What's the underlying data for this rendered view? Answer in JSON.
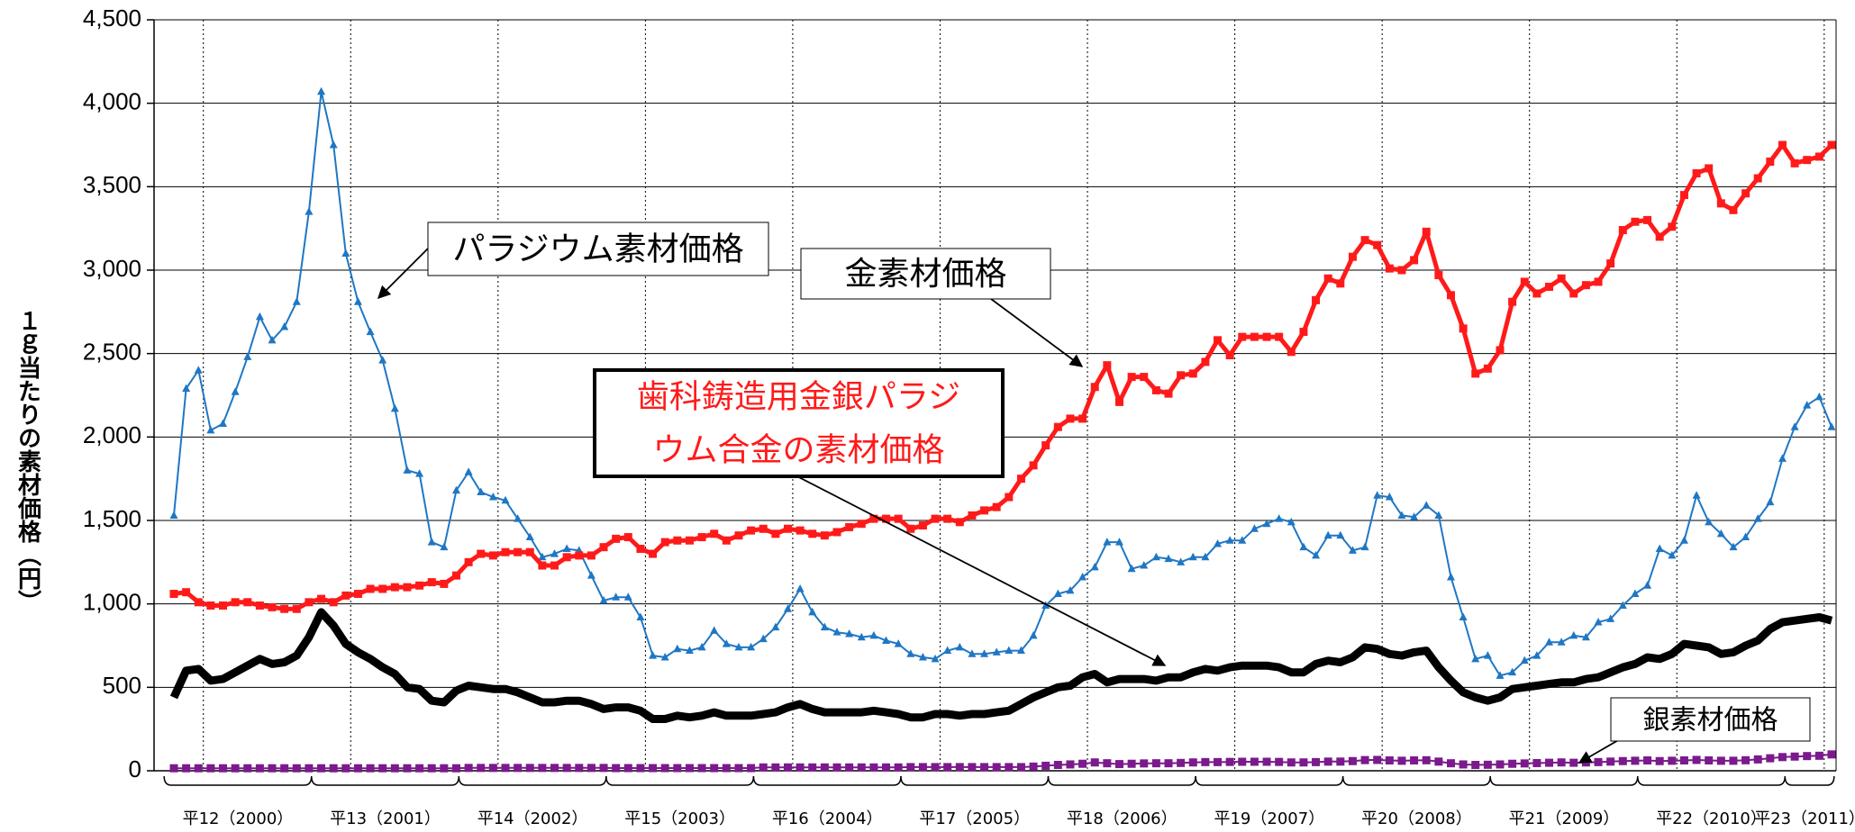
{
  "chart_data": {
    "type": "line",
    "y_label": "１ｇ当たりの素材価格（円）",
    "ylim": [
      0,
      4500
    ],
    "yticks": [
      0,
      500,
      {
        "value": 1000,
        "label": "1,000"
      },
      {
        "value": 1500,
        "label": "1,500"
      },
      {
        "value": 2000,
        "label": "2,000"
      },
      {
        "value": 2500,
        "label": "2,500"
      },
      {
        "value": 3000,
        "label": "3,000"
      },
      {
        "value": 3500,
        "label": "3,500"
      },
      {
        "value": 4000,
        "label": "4,000"
      },
      {
        "value": 4500,
        "label": "4,500"
      }
    ],
    "grid": true,
    "categories": [
      "平12（2000）",
      null,
      null,
      null,
      null,
      null,
      null,
      null,
      null,
      null,
      null,
      null,
      "平13（2001）",
      null,
      null,
      null,
      null,
      null,
      null,
      null,
      null,
      null,
      null,
      null,
      "平14（2002）",
      null,
      null,
      null,
      null,
      null,
      null,
      null,
      null,
      null,
      null,
      null,
      "平15（2003）",
      null,
      null,
      null,
      null,
      null,
      null,
      null,
      null,
      null,
      null,
      null,
      "平16（2004）",
      null,
      null,
      null,
      null,
      null,
      null,
      null,
      null,
      null,
      null,
      null,
      "平17（2005）",
      null,
      null,
      null,
      null,
      null,
      null,
      null,
      null,
      null,
      null,
      null,
      "平18（2006）",
      null,
      null,
      null,
      null,
      null,
      null,
      null,
      null,
      null,
      null,
      null,
      "平19（2007）",
      null,
      null,
      null,
      null,
      null,
      null,
      null,
      null,
      null,
      null,
      null,
      "平20（2008）",
      null,
      null,
      null,
      null,
      null,
      null,
      null,
      null,
      null,
      null,
      null,
      "平21（2009）",
      null,
      null,
      null,
      null,
      null,
      null,
      null,
      null,
      null,
      null,
      null,
      "平22（2010）",
      null,
      null,
      null,
      null,
      null,
      null,
      null,
      null,
      null,
      null,
      null,
      "平23（2011）",
      null,
      null,
      null
    ],
    "series": [
      {
        "color": "#1f77c4",
        "marker": "triangle",
        "line_width": 2,
        "values": [
          1530,
          2290,
          2400,
          2040,
          2080,
          2270,
          2480,
          2720,
          2580,
          2660,
          2810,
          3350,
          4070,
          3750,
          3100,
          2810,
          2630,
          2460,
          2170,
          1800,
          1780,
          1370,
          1340,
          1680,
          1790,
          1670,
          1640,
          1620,
          1510,
          1400,
          1280,
          1300,
          1330,
          1320,
          1170,
          1020,
          1040,
          1040,
          920,
          690,
          680,
          730,
          720,
          740,
          840,
          760,
          740,
          740,
          790,
          860,
          970,
          1090,
          950,
          860,
          830,
          820,
          800,
          810,
          780,
          760,
          700,
          680,
          670,
          720,
          740,
          700,
          700,
          710,
          720,
          720,
          810,
          990,
          1060,
          1080,
          1160,
          1220,
          1370,
          1370,
          1210,
          1230,
          1280,
          1270,
          1250,
          1280,
          1280,
          1360,
          1380,
          1380,
          1450,
          1480,
          1510,
          1490,
          1340,
          1290,
          1410,
          1410,
          1320,
          1340,
          1650,
          1640,
          1530,
          1520,
          1590,
          1530,
          1160,
          920,
          670,
          690,
          570,
          590,
          660,
          690,
          770,
          770,
          810,
          800,
          890,
          910,
          990,
          1060,
          1110,
          1330,
          1290,
          1380,
          1650,
          1490,
          1420,
          1340,
          1400,
          1510,
          1610,
          1870,
          2060,
          2190,
          2240,
          2060
        ]
      },
      {
        "color": "#ff1a1a",
        "marker": "square",
        "line_width": 5,
        "values": [
          1060,
          1070,
          1010,
          990,
          990,
          1010,
          1010,
          990,
          980,
          970,
          970,
          1010,
          1030,
          1010,
          1050,
          1060,
          1090,
          1090,
          1100,
          1100,
          1110,
          1130,
          1120,
          1170,
          1250,
          1300,
          1290,
          1310,
          1310,
          1310,
          1230,
          1230,
          1280,
          1290,
          1290,
          1340,
          1390,
          1400,
          1330,
          1300,
          1370,
          1380,
          1380,
          1400,
          1420,
          1380,
          1410,
          1440,
          1450,
          1420,
          1450,
          1440,
          1420,
          1410,
          1430,
          1460,
          1480,
          1510,
          1510,
          1510,
          1450,
          1470,
          1510,
          1510,
          1490,
          1530,
          1560,
          1580,
          1640,
          1750,
          1830,
          1950,
          2060,
          2110,
          2110,
          2300,
          2430,
          2210,
          2360,
          2360,
          2280,
          2260,
          2370,
          2380,
          2450,
          2580,
          2490,
          2600,
          2600,
          2600,
          2600,
          2510,
          2630,
          2820,
          2950,
          2920,
          3080,
          3180,
          3150,
          3010,
          3000,
          3060,
          3230,
          2970,
          2850,
          2650,
          2380,
          2410,
          2520,
          2810,
          2930,
          2860,
          2900,
          2950,
          2860,
          2910,
          2930,
          3040,
          3240,
          3290,
          3300,
          3200,
          3260,
          3450,
          3580,
          3610,
          3400,
          3360,
          3460,
          3550,
          3650,
          3750,
          3640,
          3660,
          3680,
          3750
        ]
      },
      {
        "color": "#000000",
        "marker": null,
        "line_width": 9,
        "values": [
          440,
          600,
          610,
          540,
          550,
          590,
          630,
          670,
          640,
          650,
          690,
          800,
          950,
          870,
          760,
          710,
          670,
          620,
          580,
          500,
          490,
          420,
          410,
          480,
          510,
          500,
          490,
          490,
          470,
          440,
          410,
          410,
          420,
          420,
          400,
          370,
          380,
          380,
          360,
          310,
          310,
          330,
          320,
          330,
          350,
          330,
          330,
          330,
          340,
          350,
          380,
          400,
          370,
          350,
          350,
          350,
          350,
          360,
          350,
          340,
          320,
          320,
          340,
          340,
          330,
          340,
          340,
          350,
          360,
          400,
          440,
          470,
          500,
          510,
          560,
          580,
          530,
          550,
          550,
          550,
          540,
          560,
          560,
          590,
          610,
          600,
          620,
          630,
          630,
          630,
          620,
          590,
          590,
          640,
          660,
          650,
          680,
          740,
          730,
          700,
          690,
          710,
          720,
          620,
          540,
          470,
          440,
          420,
          440,
          490,
          500,
          510,
          520,
          530,
          530,
          550,
          560,
          590,
          620,
          640,
          680,
          670,
          700,
          760,
          750,
          740,
          700,
          710,
          750,
          780,
          850,
          890,
          900,
          910,
          920,
          900
        ]
      },
      {
        "color": "#7b1a8c",
        "marker": "square",
        "line_width": 2,
        "values": [
          15,
          15,
          15,
          15,
          15,
          15,
          15,
          15,
          15,
          15,
          15,
          15,
          15,
          15,
          15,
          15,
          15,
          15,
          15,
          15,
          15,
          15,
          15,
          15,
          17,
          17,
          17,
          17,
          17,
          17,
          17,
          17,
          17,
          17,
          17,
          17,
          16,
          16,
          16,
          16,
          16,
          16,
          16,
          16,
          16,
          16,
          16,
          16,
          20,
          20,
          20,
          20,
          20,
          20,
          20,
          20,
          20,
          20,
          20,
          20,
          22,
          22,
          22,
          22,
          22,
          22,
          22,
          22,
          22,
          22,
          25,
          30,
          35,
          38,
          42,
          50,
          45,
          40,
          42,
          44,
          45,
          45,
          47,
          50,
          52,
          52,
          53,
          54,
          54,
          54,
          53,
          50,
          50,
          52,
          55,
          55,
          58,
          64,
          65,
          62,
          60,
          62,
          63,
          55,
          45,
          38,
          35,
          36,
          38,
          42,
          44,
          46,
          48,
          50,
          48,
          50,
          52,
          55,
          58,
          60,
          62,
          58,
          60,
          62,
          65,
          62,
          60,
          60,
          63,
          68,
          75,
          82,
          85,
          88,
          90,
          98
        ]
      }
    ],
    "annotations": [
      {
        "text": [
          "パラジウム素材価格"
        ]
      },
      {
        "text": [
          "金素材価格"
        ]
      },
      {
        "text": [
          "歯科鋳造用金銀パラジ",
          "ウム合金の素材価格"
        ],
        "color": "#ff1a1a"
      },
      {
        "text": [
          "銀素材価格"
        ]
      }
    ]
  }
}
